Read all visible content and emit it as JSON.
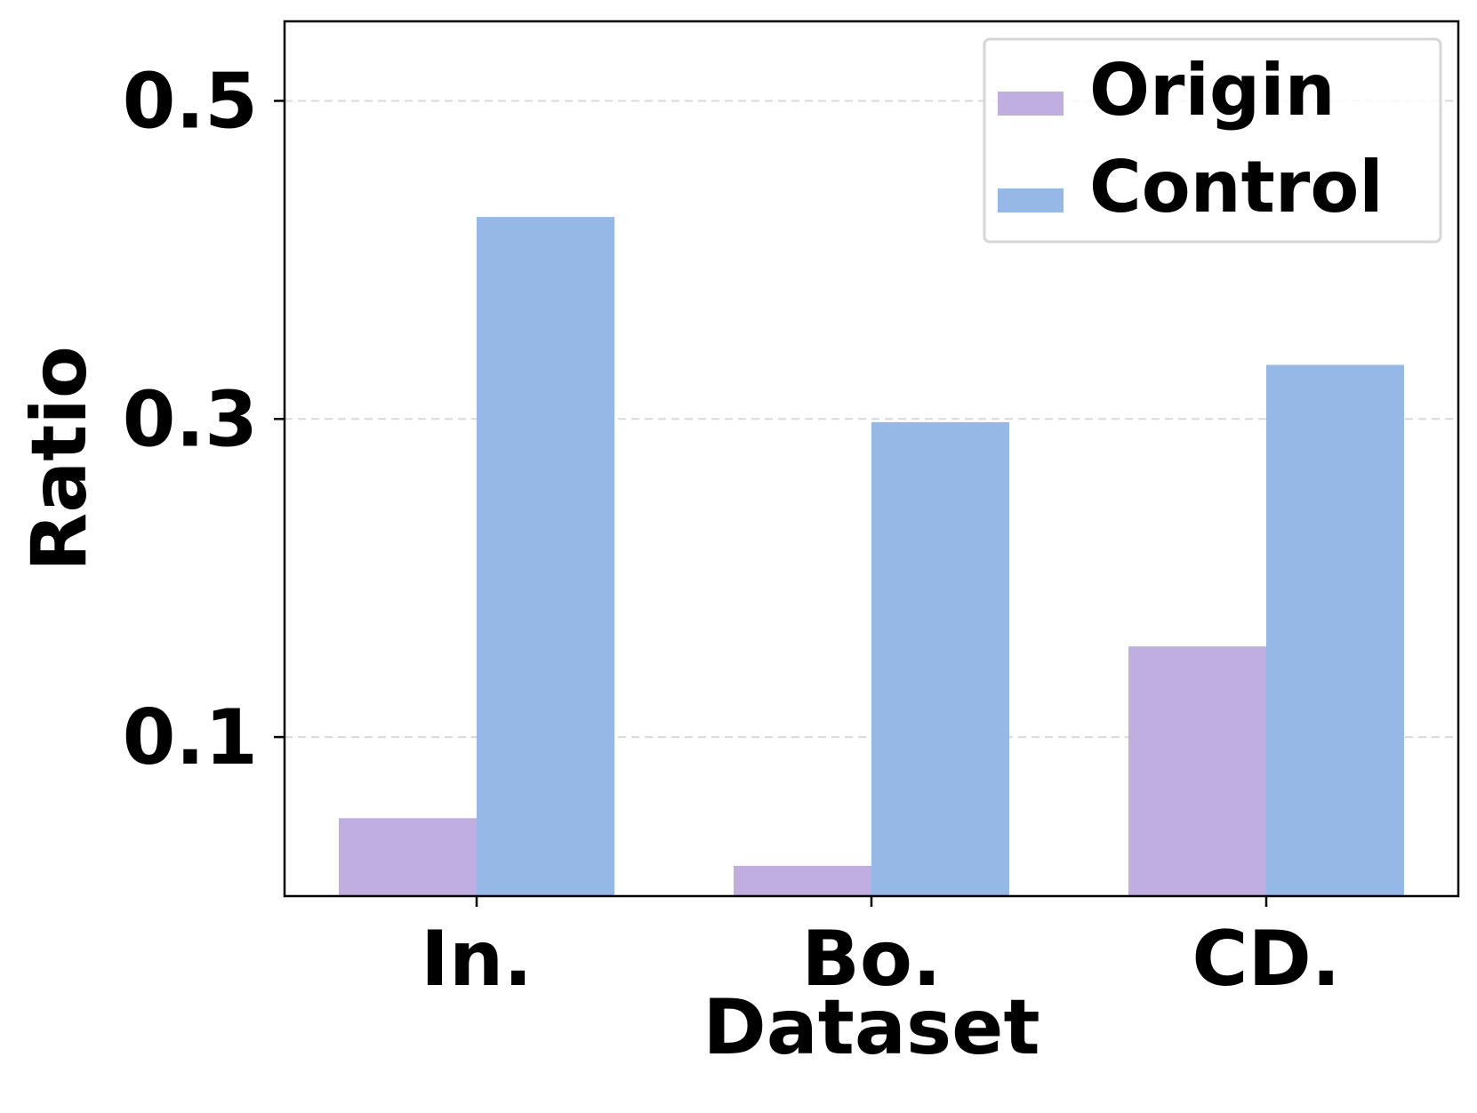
{
  "chart_data": {
    "type": "bar",
    "categories": [
      "In.",
      "Bo.",
      "CD."
    ],
    "series": [
      {
        "name": "Origin",
        "values": [
          0.049,
          0.019,
          0.157
        ],
        "color": "#c0aee0"
      },
      {
        "name": "Control",
        "values": [
          0.427,
          0.298,
          0.334
        ],
        "color": "#96b8e6"
      }
    ],
    "xlabel": "Dataset",
    "ylabel": "Ratio",
    "ylim": [
      0.0,
      0.55
    ],
    "yticks": [
      0.1,
      0.3,
      0.5
    ],
    "ytick_labels": [
      "0.1",
      "0.3",
      "0.5"
    ],
    "grid": "y-dashed",
    "legend_position": "top-right"
  }
}
